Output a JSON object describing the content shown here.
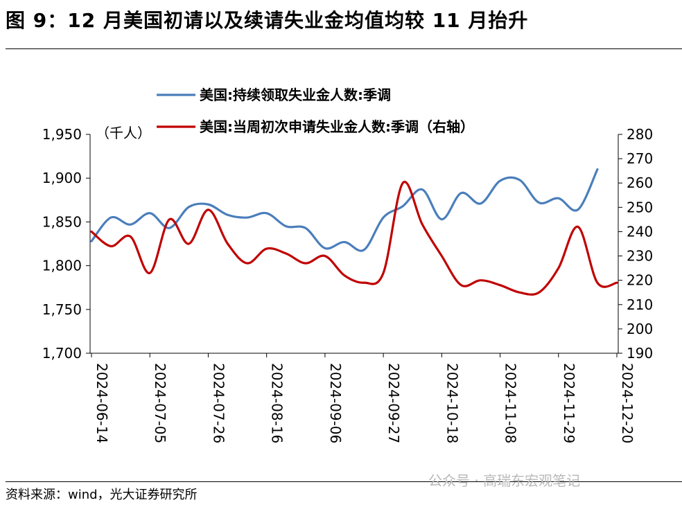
{
  "figure": {
    "title": "图 9：12 月美国初请以及续请失业金均值均较 11 月抬升",
    "source": "资料来源：wind，光大证券研究所",
    "watermark": "公众号 · 高瑞东宏观笔记"
  },
  "chart_data": {
    "type": "line",
    "unit_left": "（千人）",
    "legend_position": "top",
    "left_axis": {
      "ylim": [
        1700,
        1950
      ],
      "ticks": [
        "1,700",
        "1,750",
        "1,800",
        "1,850",
        "1,900",
        "1,950"
      ]
    },
    "right_axis": {
      "ylim": [
        190,
        280
      ],
      "ticks": [
        "190",
        "200",
        "210",
        "220",
        "230",
        "240",
        "250",
        "260",
        "270",
        "280"
      ]
    },
    "x_tick_labels": [
      "2024-06-14",
      "2024-07-05",
      "2024-07-26",
      "2024-08-16",
      "2024-09-06",
      "2024-09-27",
      "2024-10-18",
      "2024-11-08",
      "2024-11-29",
      "2024-12-20"
    ],
    "x": [
      "2024-06-14",
      "2024-06-21",
      "2024-06-28",
      "2024-07-05",
      "2024-07-12",
      "2024-07-19",
      "2024-07-26",
      "2024-08-02",
      "2024-08-09",
      "2024-08-16",
      "2024-08-23",
      "2024-08-30",
      "2024-09-06",
      "2024-09-13",
      "2024-09-20",
      "2024-09-27",
      "2024-10-04",
      "2024-10-11",
      "2024-10-18",
      "2024-10-25",
      "2024-11-01",
      "2024-11-08",
      "2024-11-15",
      "2024-11-22",
      "2024-11-29",
      "2024-12-06",
      "2024-12-13",
      "2024-12-20"
    ],
    "series": [
      {
        "name": "美国:持续领取失业金人数:季调",
        "axis": "left",
        "color": "#4a7ebb",
        "values": [
          1828,
          1855,
          1847,
          1860,
          1843,
          1867,
          1870,
          1858,
          1855,
          1860,
          1845,
          1843,
          1820,
          1827,
          1818,
          1855,
          1868,
          1887,
          1853,
          1883,
          1871,
          1897,
          1898,
          1872,
          1877,
          1864,
          1910,
          null
        ]
      },
      {
        "name": "美国:当周初次申请失业金人数:季调（右轴）",
        "axis": "right",
        "color": "#c00000",
        "values": [
          240,
          234,
          238,
          223,
          245,
          235,
          249,
          235,
          227,
          233,
          231,
          227,
          230,
          222,
          219,
          223,
          260,
          243,
          230,
          218,
          220,
          218,
          215,
          215,
          225,
          242,
          219,
          219
        ]
      }
    ]
  }
}
